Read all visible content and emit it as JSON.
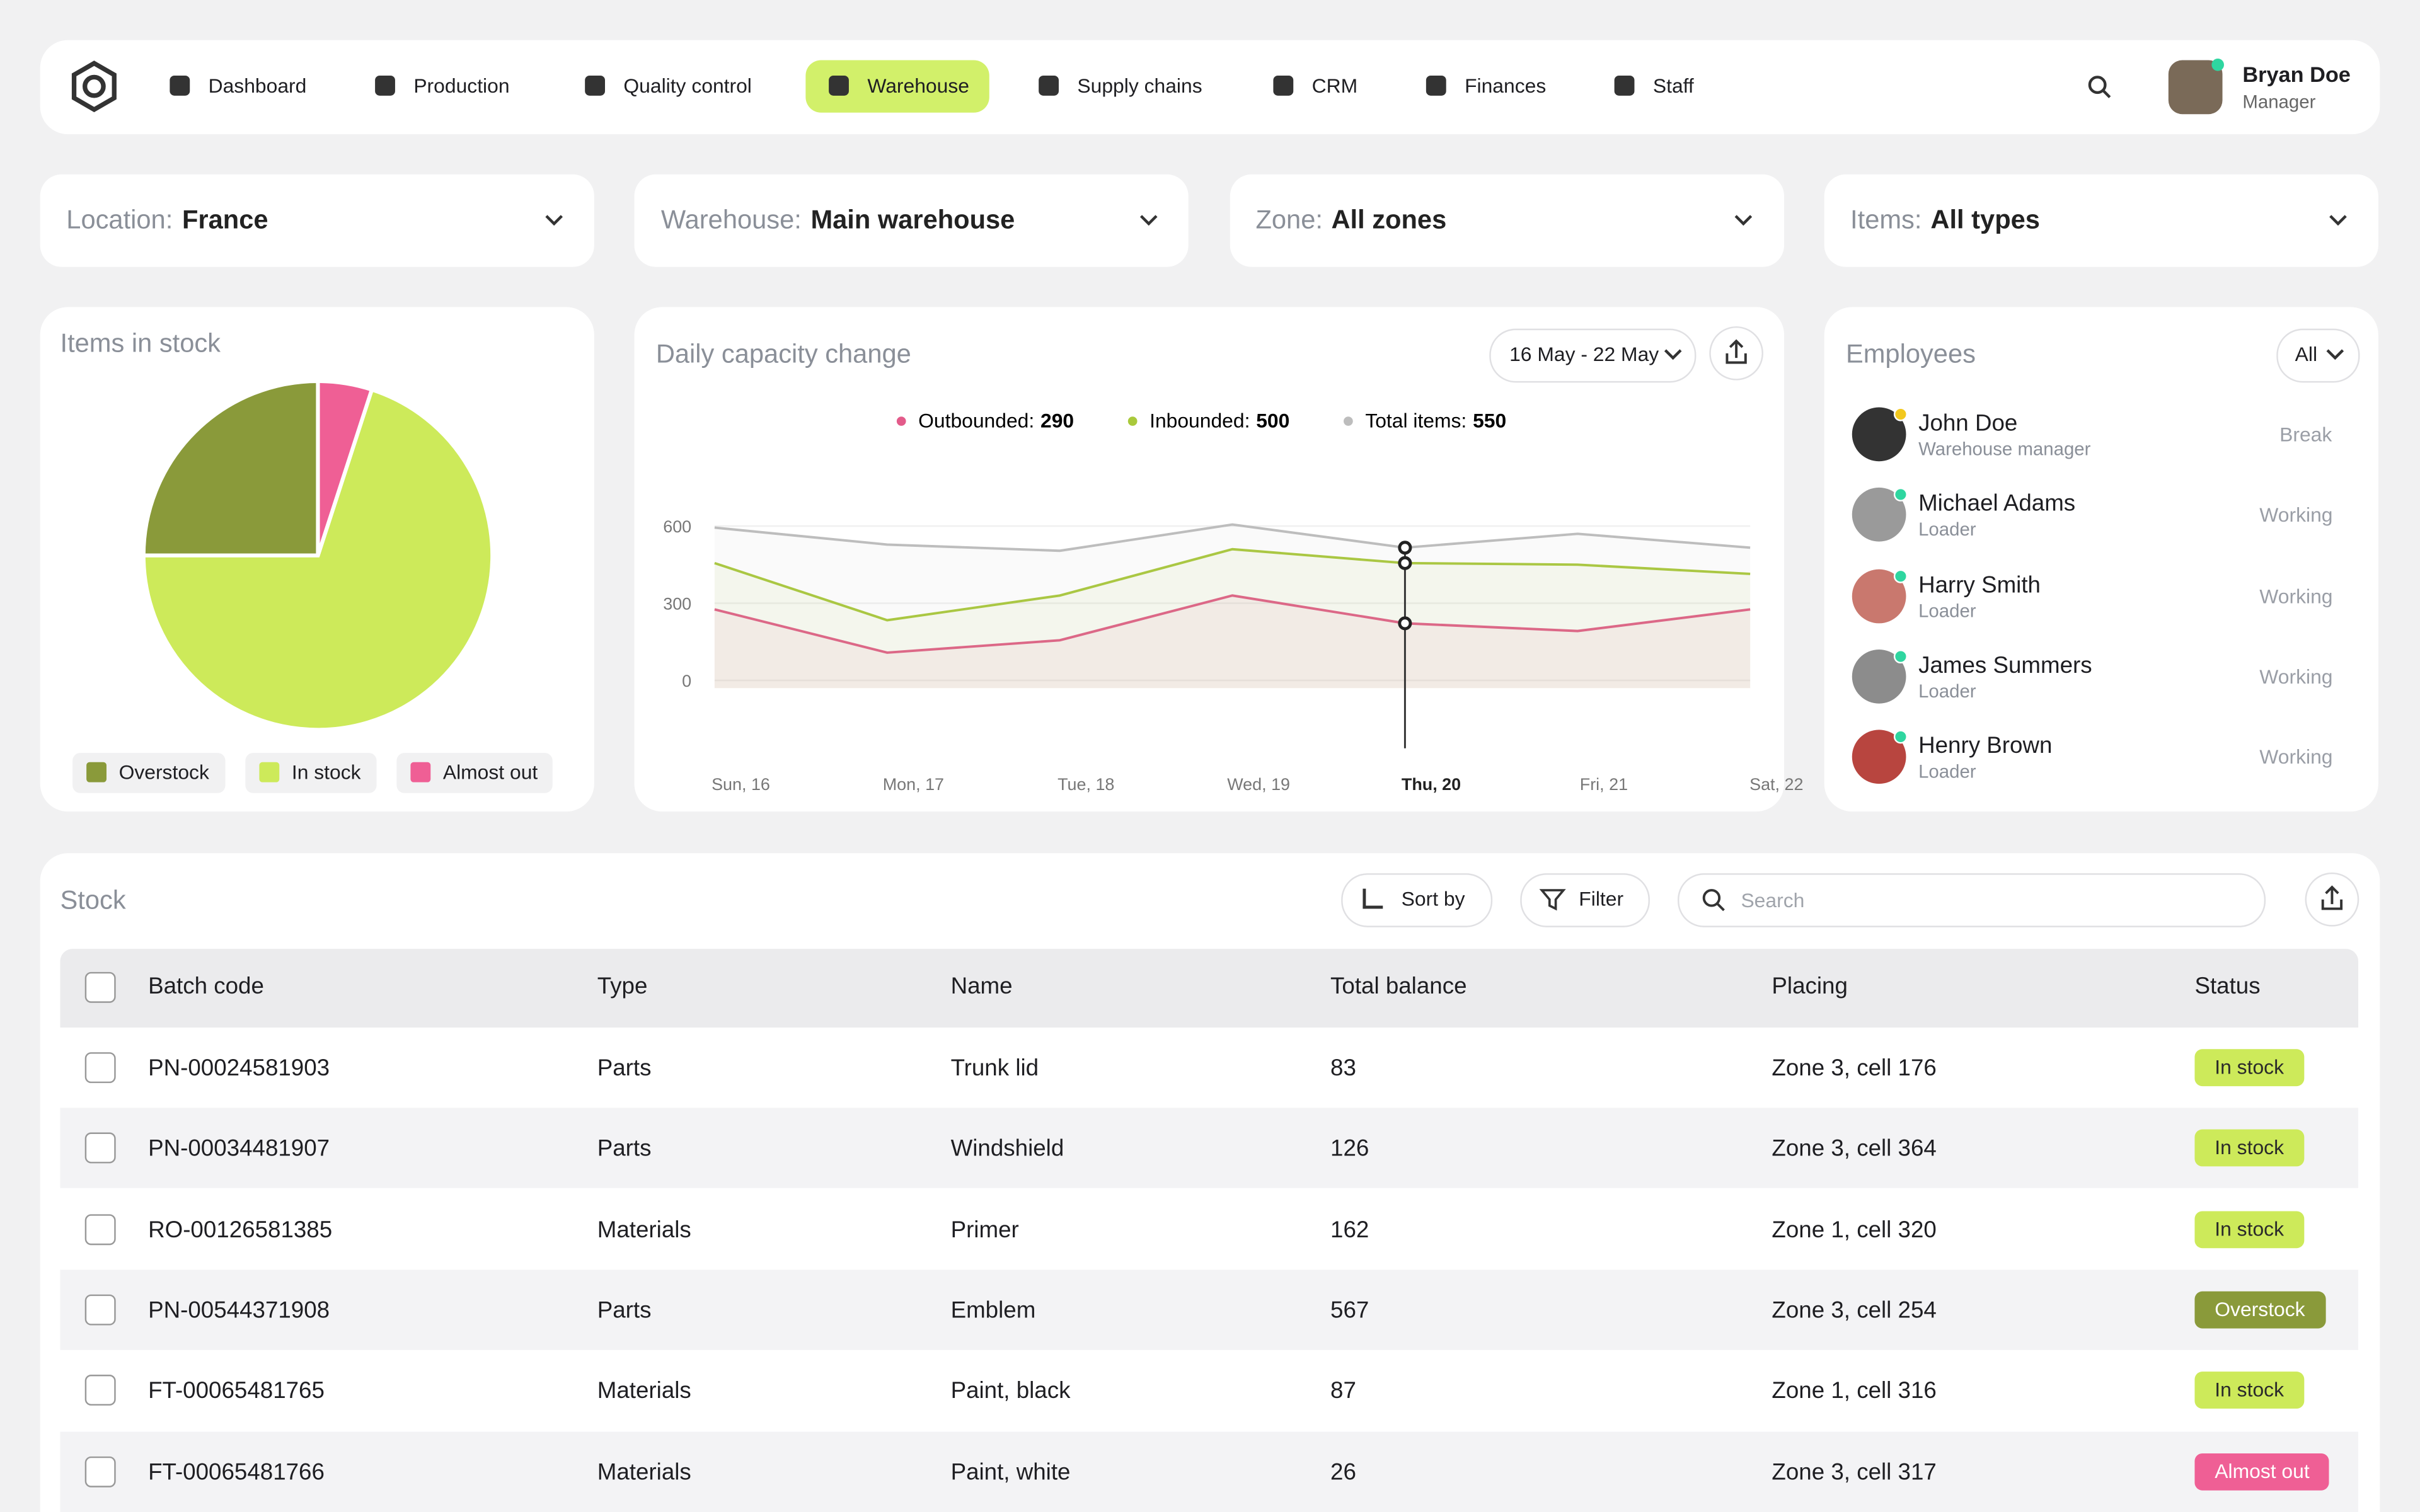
{
  "nav": {
    "items": [
      "Dashboard",
      "Production",
      "Quality control",
      "Warehouse",
      "Supply chains",
      "CRM",
      "Finances",
      "Staff"
    ]
  },
  "user": {
    "name": "Bryan Doe",
    "role": "Manager"
  },
  "filters": [
    {
      "label": "Location:",
      "value": "France"
    },
    {
      "label": "Warehouse:",
      "value": "Main warehouse"
    },
    {
      "label": "Zone:",
      "value": "All zones"
    },
    {
      "label": "Items:",
      "value": "All types"
    }
  ],
  "chart_data": [
    {
      "type": "pie",
      "title": "Items in stock",
      "categories": [
        "Overstock",
        "In stock",
        "Almost out"
      ],
      "values": [
        25,
        70,
        5
      ],
      "colors": [
        "#8a9a3a",
        "#cdea5a",
        "#ef5f95"
      ]
    },
    {
      "type": "line",
      "title": "Daily capacity change",
      "date_range": "16 May - 22 May",
      "categories": [
        "Sun, 16",
        "Mon, 17",
        "Tue, 18",
        "Wed, 19",
        "Thu, 20",
        "Fri, 21",
        "Sat, 22"
      ],
      "series": [
        {
          "name": "Outbounded:",
          "legend_value": 290,
          "color": "#e35b8a",
          "values": [
            276,
            108,
            156,
            330,
            222,
            192,
            276
          ]
        },
        {
          "name": "Inbounded:",
          "legend_value": 500,
          "color": "#a9c93b",
          "values": [
            456,
            234,
            330,
            510,
            456,
            450,
            414
          ]
        },
        {
          "name": "Total items:",
          "legend_value": 550,
          "color": "#bdbdbd",
          "values": [
            594,
            528,
            504,
            606,
            516,
            570,
            516
          ]
        }
      ],
      "ylim": [
        0,
        700
      ],
      "yticks": [
        0,
        300,
        600
      ],
      "grid": true
    }
  ],
  "employees": {
    "title": "Employees",
    "filter": "All",
    "list": [
      {
        "name": "John Doe",
        "role": "Warehouse manager",
        "status": "Break"
      },
      {
        "name": "Michael Adams",
        "role": "Loader",
        "status": "Working"
      },
      {
        "name": "Harry Smith",
        "role": "Loader",
        "status": "Working"
      },
      {
        "name": "James Summers",
        "role": "Loader",
        "status": "Working"
      },
      {
        "name": "Henry Brown",
        "role": "Loader",
        "status": "Working"
      }
    ]
  },
  "stock": {
    "title": "Stock",
    "sort": "Sort by",
    "filter": "Filter",
    "search": "Search",
    "columns": [
      "Batch code",
      "Type",
      "Name",
      "Total balance",
      "Placing",
      "Status"
    ],
    "rows": [
      [
        "PN-00024581903",
        "Parts",
        "Trunk lid",
        83,
        "Zone 3, cell 176",
        "In stock"
      ],
      [
        "PN-00034481907",
        "Parts",
        "Windshield",
        126,
        "Zone 3, cell 364",
        "In stock"
      ],
      [
        "RO-00126581385",
        "Materials",
        "Primer",
        162,
        "Zone 1, cell 320",
        "In stock"
      ],
      [
        "PN-00544371908",
        "Parts",
        "Emblem",
        567,
        "Zone 3, cell 254",
        "Overstock"
      ],
      [
        "FT-00065481765",
        "Materials",
        "Paint, black",
        87,
        "Zone 1, cell 316",
        "In stock"
      ],
      [
        "FT-00065481766",
        "Materials",
        "Paint, white",
        26,
        "Zone 3, cell 317",
        "Almost out"
      ]
    ]
  }
}
